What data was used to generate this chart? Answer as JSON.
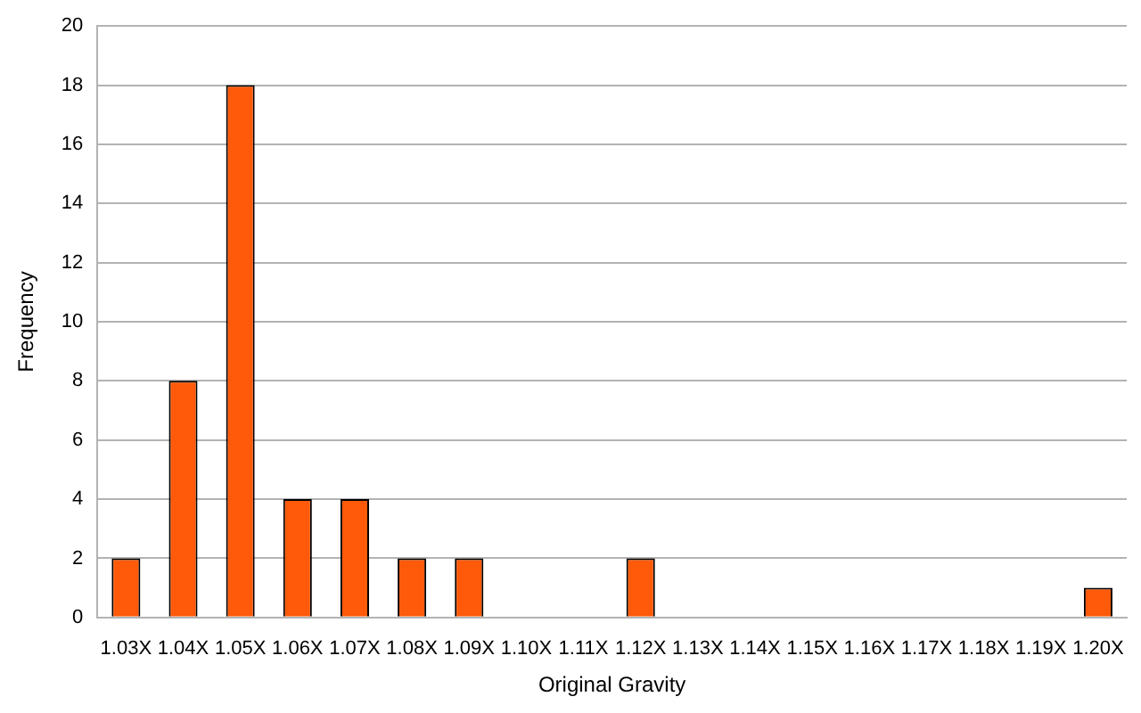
{
  "chart_data": {
    "type": "bar",
    "xlabel": "Original Gravity",
    "ylabel": "Frequency",
    "categories": [
      "1.03X",
      "1.04X",
      "1.05X",
      "1.06X",
      "1.07X",
      "1.08X",
      "1.09X",
      "1.10X",
      "1.11X",
      "1.12X",
      "1.13X",
      "1.14X",
      "1.15X",
      "1.16X",
      "1.17X",
      "1.18X",
      "1.19X",
      "1.20X"
    ],
    "values": [
      2,
      8,
      18,
      4,
      4,
      2,
      2,
      0,
      0,
      2,
      0,
      0,
      0,
      0,
      0,
      0,
      0,
      1
    ],
    "color": "#ff5a0a",
    "ylim": [
      0,
      20
    ],
    "yticks": [
      0,
      2,
      4,
      6,
      8,
      10,
      12,
      14,
      16,
      18,
      20
    ],
    "grid": "y",
    "legend": false
  }
}
